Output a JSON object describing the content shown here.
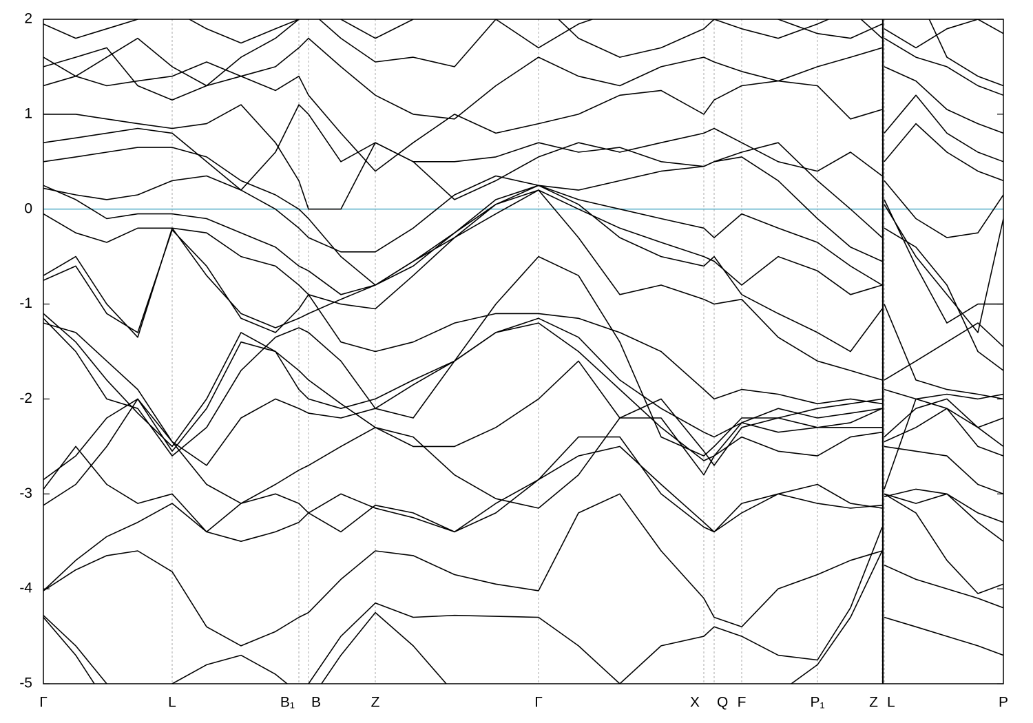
{
  "chart_data": {
    "type": "line",
    "x": [
      0,
      0.047,
      0.092,
      0.137,
      0.187,
      0.237,
      0.287,
      0.337,
      0.371,
      0.385,
      0.432,
      0.482,
      0.537,
      0.597,
      0.657,
      0.719,
      0.777,
      0.837,
      0.897,
      0.959,
      0.974,
      1.014,
      1.067,
      1.124,
      1.172,
      1.218,
      1.219,
      1.221,
      1.267,
      1.312,
      1.357,
      1.394
    ],
    "xlim": [
      0,
      1.394
    ],
    "xticks": [
      {
        "value": 0,
        "label": "Γ"
      },
      {
        "value": 0.187,
        "label": "L"
      },
      {
        "value": 0.371,
        "label": "B₁"
      },
      {
        "value": 0.385,
        "label": "B"
      },
      {
        "value": 0.482,
        "label": "Z"
      },
      {
        "value": 0.719,
        "label": "Γ"
      },
      {
        "value": 0.959,
        "label": "X"
      },
      {
        "value": 0.974,
        "label": "Q"
      },
      {
        "value": 1.014,
        "label": "F"
      },
      {
        "value": 1.124,
        "label": "P₁"
      },
      {
        "value": 1.218,
        "label": "Z"
      },
      {
        "value": 1.221,
        "label": "L"
      },
      {
        "value": 1.394,
        "label": "P"
      }
    ],
    "ylim": [
      -5,
      2
    ],
    "yticks": [
      -5,
      -4,
      -3,
      -2,
      -1,
      0,
      1,
      2
    ],
    "grid": true,
    "separators": [
      1.219
    ],
    "hline": {
      "value": 0,
      "color": "#63b4cc"
    },
    "color": "#000000",
    "series": [
      {
        "values": [
          -4.3,
          -4.7,
          -5.2,
          -5.6,
          -5.5,
          -5.4,
          -5.3,
          -5.2,
          -5.1,
          -5.0,
          -4.5,
          -4.15,
          -4.3,
          -4.28,
          -4.29,
          -4.3,
          -4.6,
          -5.0,
          -5.3,
          -5.4,
          -5.3,
          -5.2,
          -5.1,
          -4.8,
          -4.3,
          -3.6,
          null,
          -3.75,
          -3.9,
          -4.0,
          -4.1,
          -4.2
        ]
      },
      {
        "values": [
          -4.02,
          -3.8,
          -3.65,
          -3.6,
          -3.82,
          -4.4,
          -4.6,
          -4.45,
          -4.3,
          -4.25,
          -3.9,
          -3.6,
          -3.65,
          -3.85,
          -3.95,
          -4.02,
          -3.2,
          -3.0,
          -3.6,
          -4.1,
          -4.3,
          -4.4,
          -4.0,
          -3.85,
          -3.7,
          -3.6,
          null,
          -3.0,
          -3.2,
          -3.7,
          -4.05,
          -3.95
        ]
      },
      {
        "values": [
          -4.02,
          -3.7,
          -3.45,
          -3.3,
          -3.1,
          -3.4,
          -3.5,
          -3.4,
          -3.3,
          -3.2,
          -3.0,
          -3.15,
          -3.25,
          -3.4,
          -3.1,
          -2.85,
          -2.4,
          -2.4,
          -3.0,
          -3.35,
          -3.4,
          -3.2,
          -3.0,
          -2.9,
          -3.1,
          -3.15,
          null,
          -3.0,
          -3.1,
          -3.0,
          -3.3,
          -3.5
        ]
      },
      {
        "values": [
          -2.85,
          -2.6,
          -2.2,
          -2.0,
          -2.45,
          -2.9,
          -3.1,
          -2.9,
          -2.75,
          -2.7,
          -2.5,
          -2.3,
          -2.4,
          -2.8,
          -3.05,
          -3.15,
          -2.8,
          -2.2,
          -2.0,
          -2.55,
          -2.7,
          -2.3,
          -2.2,
          -2.1,
          -2.05,
          -2.0,
          null,
          -2.45,
          -2.3,
          -2.1,
          -2.3,
          -2.5
        ]
      },
      {
        "values": [
          -3.12,
          -2.9,
          -2.5,
          -2.0,
          -2.55,
          -2.1,
          -1.4,
          -1.5,
          -1.7,
          -1.8,
          -2.05,
          -2.3,
          -2.5,
          -2.5,
          -2.3,
          -2.0,
          -1.6,
          -2.2,
          -2.2,
          -2.8,
          -2.6,
          -2.4,
          -2.55,
          -2.6,
          -2.4,
          -2.35,
          null,
          -2.95,
          -2.0,
          -2.1,
          -2.5,
          -2.6
        ]
      },
      {
        "values": [
          -1.1,
          -1.4,
          -1.8,
          -2.15,
          -2.5,
          -2.0,
          -1.3,
          -1.5,
          -1.9,
          -2.0,
          -2.1,
          -2.0,
          -1.8,
          -1.6,
          -1.3,
          -1.15,
          -1.35,
          -1.8,
          -2.1,
          -2.35,
          -2.4,
          -2.25,
          -2.1,
          -2.2,
          -2.15,
          -2.1,
          null,
          -2.4,
          -2.1,
          -2.0,
          -2.3,
          -2.2
        ]
      },
      {
        "values": [
          -1.15,
          -1.5,
          -2.0,
          -2.1,
          -2.6,
          -2.3,
          -1.7,
          -1.35,
          -1.25,
          -1.3,
          -1.6,
          -2.1,
          -2.2,
          -1.6,
          -1.0,
          -0.5,
          -0.7,
          -1.4,
          -2.4,
          -2.6,
          -2.5,
          -2.2,
          -2.2,
          -2.3,
          -2.3,
          -2.3,
          null,
          -1.9,
          -2.0,
          -1.95,
          -2.0,
          -1.95
        ]
      },
      {
        "values": [
          -0.75,
          -0.6,
          -1.1,
          -1.3,
          -0.22,
          -0.6,
          -1.15,
          -1.3,
          -1.05,
          -0.9,
          -1.4,
          -1.5,
          -1.4,
          -1.2,
          -1.1,
          -1.1,
          -1.15,
          -1.3,
          -1.5,
          -1.9,
          -2.0,
          -1.9,
          -1.95,
          -2.05,
          -2.0,
          -2.05,
          null,
          -1.8,
          -1.6,
          -1.4,
          -1.2,
          -1.45
        ]
      },
      {
        "values": [
          -0.7,
          -0.5,
          -1.0,
          -1.35,
          -0.2,
          -0.7,
          -1.1,
          -1.25,
          -1.15,
          -1.1,
          -0.95,
          -0.8,
          -0.55,
          -0.3,
          -0.05,
          0.2,
          -0.3,
          -0.9,
          -0.8,
          -0.95,
          -1.0,
          -0.95,
          -1.35,
          -1.6,
          -1.7,
          -1.8,
          null,
          -1.0,
          -1.8,
          -1.9,
          -1.95,
          -2.0
        ]
      },
      {
        "values": [
          -0.05,
          -0.25,
          -0.35,
          -0.2,
          -0.2,
          -0.25,
          -0.5,
          -0.6,
          -0.8,
          -0.9,
          -1.0,
          -1.05,
          -0.7,
          -0.3,
          0.05,
          0.25,
          0.05,
          -0.3,
          -0.5,
          -0.6,
          -0.5,
          -0.9,
          -1.1,
          -1.3,
          -1.5,
          -1.05,
          null,
          0.1,
          -0.6,
          -1.2,
          -1.0,
          -1.0
        ]
      },
      {
        "values": [
          0.25,
          0.1,
          -0.1,
          -0.05,
          -0.05,
          -0.1,
          -0.25,
          -0.4,
          -0.6,
          -0.65,
          -0.9,
          -0.8,
          -0.55,
          -0.25,
          0.05,
          0.2,
          0.0,
          -0.2,
          -0.35,
          -0.5,
          -0.55,
          -0.8,
          -0.5,
          -0.65,
          -0.9,
          -0.8,
          null,
          -0.2,
          -0.4,
          -0.8,
          -1.5,
          -1.7
        ]
      },
      {
        "values": [
          0.22,
          0.15,
          0.1,
          0.15,
          0.3,
          0.35,
          0.2,
          0.0,
          -0.2,
          -0.3,
          -0.45,
          -0.45,
          -0.2,
          0.15,
          0.35,
          0.25,
          0.1,
          0.0,
          -0.1,
          -0.2,
          -0.3,
          -0.05,
          -0.2,
          -0.35,
          -0.6,
          -0.8,
          null,
          0.05,
          -0.5,
          -0.9,
          -1.3,
          -0.1
        ]
      },
      {
        "values": [
          0.5,
          0.55,
          0.6,
          0.65,
          0.65,
          0.55,
          0.3,
          0.15,
          0.0,
          -0.1,
          -0.5,
          -0.8,
          -0.6,
          -0.25,
          0.1,
          0.25,
          0.2,
          0.3,
          0.4,
          0.45,
          0.5,
          0.55,
          0.3,
          -0.1,
          -0.4,
          -0.55,
          null,
          0.3,
          -0.1,
          -0.3,
          -0.25,
          0.15
        ]
      },
      {
        "values": [
          0.7,
          0.75,
          0.8,
          0.85,
          0.8,
          0.5,
          0.2,
          0.6,
          1.1,
          1.0,
          0.5,
          0.7,
          0.5,
          0.5,
          0.55,
          0.7,
          0.6,
          0.65,
          0.5,
          0.45,
          0.5,
          0.6,
          0.7,
          0.3,
          0.0,
          -0.3,
          null,
          0.5,
          0.9,
          0.6,
          0.4,
          0.3
        ]
      },
      {
        "values": [
          1.0,
          1.0,
          0.95,
          0.9,
          0.85,
          0.9,
          1.1,
          0.7,
          0.3,
          0.0,
          0.0,
          0.7,
          0.5,
          0.1,
          0.3,
          0.55,
          0.7,
          0.6,
          0.7,
          0.8,
          0.85,
          0.7,
          0.5,
          0.4,
          0.6,
          0.35,
          null,
          0.8,
          1.2,
          0.8,
          0.6,
          0.5
        ]
      },
      {
        "values": [
          1.5,
          1.6,
          1.7,
          1.3,
          1.15,
          1.3,
          1.4,
          1.25,
          1.4,
          1.2,
          0.8,
          0.4,
          0.7,
          1.0,
          0.8,
          0.9,
          1.0,
          1.2,
          1.25,
          1.0,
          1.15,
          1.3,
          1.35,
          1.3,
          0.95,
          1.05,
          null,
          1.5,
          1.35,
          1.05,
          0.9,
          0.8
        ]
      },
      {
        "values": [
          1.6,
          1.4,
          1.3,
          1.35,
          1.4,
          1.55,
          1.4,
          1.5,
          1.7,
          1.8,
          1.5,
          1.2,
          1.0,
          0.95,
          1.3,
          1.6,
          1.4,
          1.3,
          1.5,
          1.6,
          1.55,
          1.45,
          1.35,
          1.5,
          1.6,
          1.7,
          null,
          1.8,
          1.6,
          1.5,
          1.3,
          1.2
        ]
      },
      {
        "values": [
          1.95,
          1.8,
          1.9,
          2.0,
          2.1,
          1.9,
          1.75,
          1.9,
          2.0,
          2.1,
          1.8,
          1.55,
          1.6,
          1.5,
          2.0,
          2.2,
          1.8,
          1.6,
          1.7,
          1.9,
          2.0,
          1.9,
          1.8,
          1.95,
          2.1,
          1.8,
          null,
          2.0,
          2.3,
          1.6,
          1.4,
          1.3
        ]
      },
      {
        "values": [
          1.3,
          1.4,
          1.6,
          1.8,
          1.5,
          1.3,
          1.6,
          1.8,
          2.0,
          2.2,
          2.0,
          1.8,
          2.0,
          2.3,
          2.0,
          1.7,
          1.95,
          2.1,
          2.2,
          2.1,
          2.0,
          2.1,
          2.0,
          1.85,
          1.8,
          1.95,
          null,
          1.9,
          1.7,
          1.9,
          2.0,
          1.85
        ]
      },
      {
        "values": [
          -4.28,
          -4.6,
          -5.0,
          -5.3,
          -5.0,
          -4.8,
          -4.7,
          -4.9,
          -5.1,
          -5.2,
          -4.7,
          -4.25,
          -4.6,
          -5.1,
          -5.5,
          -5.6,
          -5.3,
          -5.0,
          -4.6,
          -4.5,
          -4.4,
          -4.5,
          -4.7,
          -4.75,
          -4.2,
          -3.35,
          null,
          -4.3,
          -4.4,
          -4.5,
          -4.6,
          -4.7
        ]
      },
      {
        "values": [
          -1.2,
          -1.3,
          -1.6,
          -1.9,
          -2.45,
          -2.7,
          -2.2,
          -2.0,
          -2.1,
          -2.15,
          -2.2,
          -2.1,
          -1.85,
          -1.6,
          -1.3,
          -1.2,
          -1.5,
          -1.9,
          -2.3,
          -2.65,
          -2.6,
          -2.25,
          -2.35,
          -2.3,
          -2.25,
          -2.1,
          null,
          -2.5,
          -2.55,
          -2.6,
          -2.9,
          -3.0
        ]
      },
      {
        "values": [
          -2.95,
          -2.5,
          -2.9,
          -3.1,
          -3.0,
          -3.4,
          -3.1,
          -3.0,
          -3.1,
          -3.2,
          -3.4,
          -3.12,
          -3.2,
          -3.4,
          -3.2,
          -2.85,
          -2.6,
          -2.5,
          -2.9,
          -3.3,
          -3.4,
          -3.1,
          -3.0,
          -3.1,
          -3.15,
          -3.12,
          null,
          -3.03,
          -2.95,
          -3.0,
          -3.2,
          -3.3
        ]
      }
    ]
  }
}
